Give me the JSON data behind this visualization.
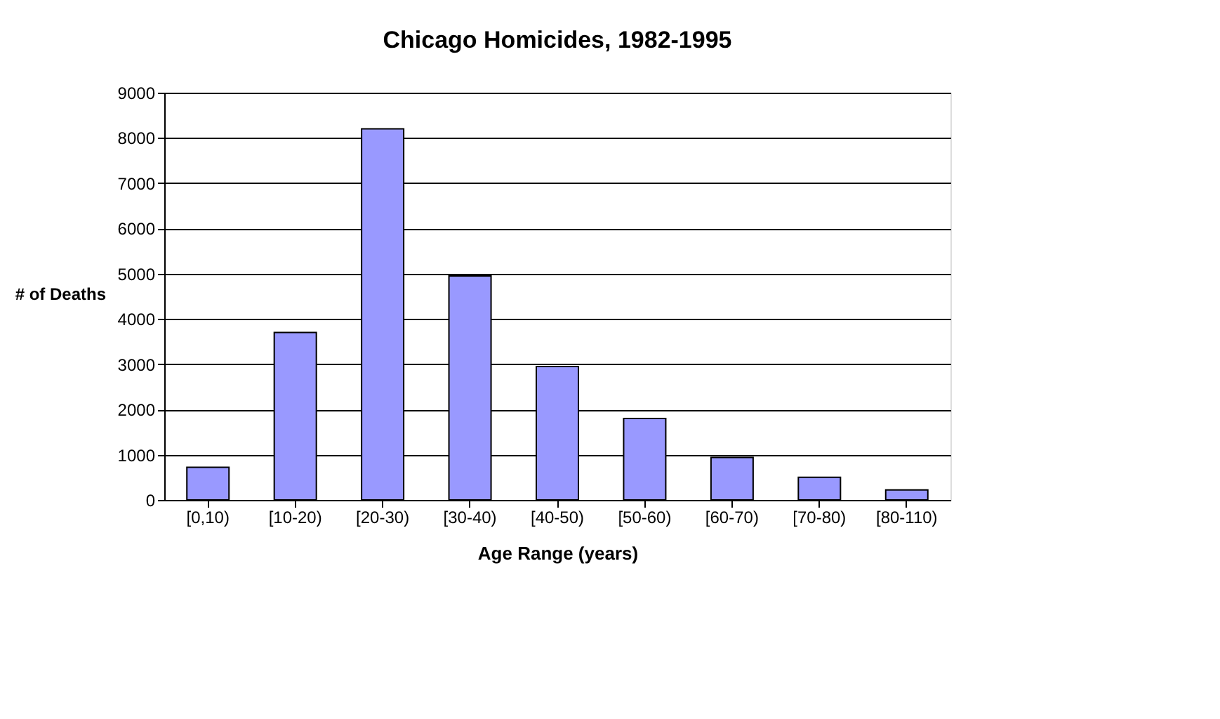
{
  "chart_data": {
    "type": "bar",
    "title": "Chicago Homicides, 1982-1995",
    "xlabel": "Age Range (years)",
    "ylabel": "# of Deaths",
    "categories": [
      "[0,10)",
      "[10-20)",
      "[20-30)",
      "[30-40)",
      "[40-50)",
      "[50-60)",
      "[60-70)",
      "[70-80)",
      "[80-110)"
    ],
    "values": [
      720,
      3700,
      8200,
      4950,
      2950,
      1800,
      940,
      500,
      220
    ],
    "color": "#9999ff",
    "ylim": [
      0,
      9000
    ],
    "yticks": [
      0,
      1000,
      2000,
      3000,
      4000,
      5000,
      6000,
      7000,
      8000,
      9000
    ],
    "grid": "y"
  }
}
